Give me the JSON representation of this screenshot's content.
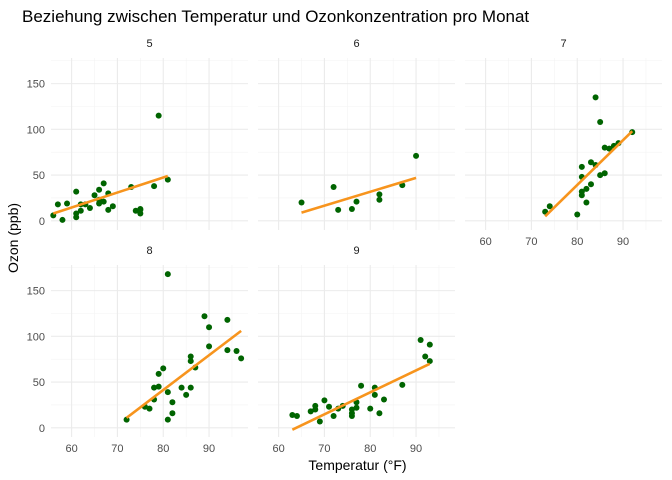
{
  "chart_data": {
    "type": "scatter",
    "title": "Beziehung zwischen Temperatur und Ozonkonzentration pro Monat",
    "xlabel": "Temperatur (°F)",
    "ylabel": "Ozon (ppb)",
    "xlim": [
      55.5,
      98.5
    ],
    "ylim": [
      -10,
      178
    ],
    "x_ticks": [
      60,
      70,
      80,
      90
    ],
    "y_ticks": [
      0,
      50,
      100,
      150
    ],
    "grid": true,
    "legend": "none",
    "point_color": "#006400",
    "line_color": "#f7941d",
    "facets": [
      {
        "strip": "5",
        "points": [
          [
            56,
            6
          ],
          [
            57,
            18
          ],
          [
            58,
            1
          ],
          [
            59,
            19
          ],
          [
            61,
            8
          ],
          [
            61,
            4
          ],
          [
            61,
            32
          ],
          [
            62,
            11
          ],
          [
            62,
            18
          ],
          [
            63,
            18
          ],
          [
            64,
            14
          ],
          [
            65,
            28
          ],
          [
            66,
            23
          ],
          [
            66,
            34
          ],
          [
            66,
            19
          ],
          [
            67,
            41
          ],
          [
            67,
            21
          ],
          [
            68,
            30
          ],
          [
            68,
            12
          ],
          [
            69,
            16
          ],
          [
            73,
            37
          ],
          [
            74,
            11
          ],
          [
            75,
            12
          ],
          [
            75,
            8
          ],
          [
            75,
            13
          ],
          [
            78,
            38
          ],
          [
            79,
            115
          ],
          [
            81,
            45
          ]
        ],
        "fit": [
          [
            56,
            8
          ],
          [
            81,
            49
          ]
        ]
      },
      {
        "strip": "6",
        "points": [
          [
            65,
            20
          ],
          [
            72,
            37
          ],
          [
            73,
            12
          ],
          [
            76,
            13
          ],
          [
            77,
            21
          ],
          [
            82,
            23
          ],
          [
            82,
            29
          ],
          [
            87,
            39
          ],
          [
            90,
            71
          ]
        ],
        "fit": [
          [
            65,
            9
          ],
          [
            90,
            47
          ]
        ]
      },
      {
        "strip": "7",
        "points": [
          [
            73,
            10
          ],
          [
            74,
            16
          ],
          [
            80,
            7
          ],
          [
            81,
            28
          ],
          [
            81,
            32
          ],
          [
            81,
            59
          ],
          [
            81,
            48
          ],
          [
            82,
            20
          ],
          [
            82,
            35
          ],
          [
            83,
            40
          ],
          [
            83,
            64
          ],
          [
            84,
            61
          ],
          [
            84,
            135
          ],
          [
            85,
            108
          ],
          [
            85,
            50
          ],
          [
            86,
            52
          ],
          [
            86,
            80
          ],
          [
            87,
            79
          ],
          [
            88,
            82
          ],
          [
            89,
            85
          ],
          [
            92,
            97
          ]
        ],
        "fit": [
          [
            73,
            5
          ],
          [
            92,
            98
          ]
        ]
      },
      {
        "strip": "8",
        "points": [
          [
            72,
            9
          ],
          [
            76,
            23
          ],
          [
            77,
            21
          ],
          [
            78,
            31
          ],
          [
            78,
            44
          ],
          [
            79,
            45
          ],
          [
            79,
            59
          ],
          [
            80,
            65
          ],
          [
            81,
            168
          ],
          [
            81,
            9
          ],
          [
            81,
            39
          ],
          [
            82,
            16
          ],
          [
            82,
            28
          ],
          [
            84,
            44
          ],
          [
            85,
            36
          ],
          [
            86,
            73
          ],
          [
            86,
            78
          ],
          [
            86,
            44
          ],
          [
            87,
            66
          ],
          [
            89,
            122
          ],
          [
            90,
            89
          ],
          [
            90,
            110
          ],
          [
            94,
            118
          ],
          [
            94,
            85
          ],
          [
            96,
            84
          ],
          [
            97,
            76
          ]
        ],
        "fit": [
          [
            72,
            11
          ],
          [
            97,
            106
          ]
        ]
      },
      {
        "strip": "9",
        "points": [
          [
            63,
            14
          ],
          [
            64,
            13
          ],
          [
            67,
            18
          ],
          [
            68,
            20
          ],
          [
            68,
            24
          ],
          [
            69,
            7
          ],
          [
            70,
            30
          ],
          [
            71,
            23
          ],
          [
            72,
            13
          ],
          [
            73,
            21
          ],
          [
            74,
            24
          ],
          [
            76,
            13
          ],
          [
            76,
            20
          ],
          [
            76,
            16
          ],
          [
            77,
            28
          ],
          [
            77,
            22
          ],
          [
            78,
            46
          ],
          [
            80,
            21
          ],
          [
            81,
            44
          ],
          [
            81,
            36
          ],
          [
            82,
            16
          ],
          [
            83,
            31
          ],
          [
            87,
            47
          ],
          [
            91,
            96
          ],
          [
            92,
            78
          ],
          [
            93,
            91
          ],
          [
            93,
            73
          ]
        ],
        "fit": [
          [
            63,
            -2
          ],
          [
            93,
            70
          ]
        ]
      }
    ]
  }
}
